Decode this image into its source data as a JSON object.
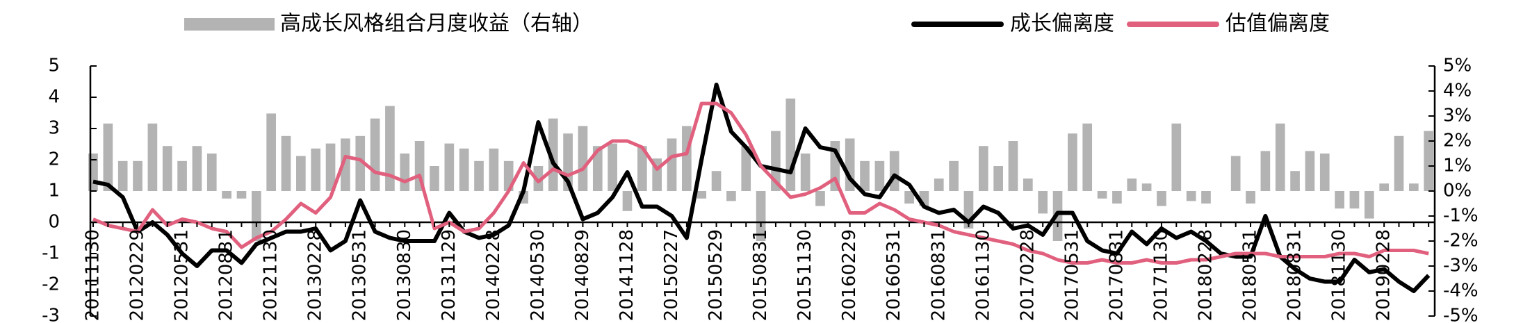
{
  "chart_data": {
    "type": "combo",
    "categories": [
      "20111130",
      null,
      null,
      "20120229",
      null,
      null,
      "20120531",
      null,
      null,
      "20120831",
      null,
      null,
      "20121130",
      null,
      null,
      "20130228",
      null,
      null,
      "20130531",
      null,
      null,
      "20130830",
      null,
      null,
      "20131129",
      null,
      null,
      "20140228",
      null,
      null,
      "20140530",
      null,
      null,
      "20140829",
      null,
      null,
      "20141128",
      null,
      null,
      "20150227",
      null,
      null,
      "20150529",
      null,
      null,
      "20150831",
      null,
      null,
      "20151130",
      null,
      null,
      "20160229",
      null,
      null,
      "20160531",
      null,
      null,
      "20160831",
      null,
      null,
      "20161130",
      null,
      null,
      "20170228",
      null,
      null,
      "20170531",
      null,
      null,
      "20170831",
      null,
      null,
      "20171130",
      null,
      null,
      "20180228",
      null,
      null,
      "20180531",
      null,
      null,
      "20180831",
      null,
      null,
      "20181130",
      null,
      null,
      "20190228",
      null,
      null,
      null
    ],
    "series": [
      {
        "name": "高成长风格组合月度收益（右轴）",
        "type": "bar",
        "axis": "y2",
        "color": "#b3b3b3",
        "values": [
          1.5,
          2.7,
          1.2,
          1.2,
          2.7,
          1.8,
          1.2,
          1.8,
          1.5,
          -0.3,
          -0.3,
          -2.0,
          3.1,
          2.2,
          1.4,
          1.7,
          1.9,
          2.1,
          2.2,
          2.9,
          3.4,
          1.5,
          2.0,
          1.0,
          1.9,
          1.7,
          1.2,
          1.7,
          1.2,
          -0.5,
          1.0,
          2.9,
          2.3,
          2.6,
          1.8,
          1.9,
          -0.8,
          1.8,
          1.3,
          2.1,
          2.6,
          -0.3,
          0.8,
          -0.4,
          1.8,
          -2.0,
          2.4,
          3.7,
          1.5,
          -0.6,
          2.0,
          2.1,
          1.2,
          1.2,
          1.6,
          -0.5,
          -0.6,
          0.5,
          1.2,
          -1.5,
          1.8,
          1.0,
          2.0,
          0.5,
          -0.9,
          -2.0,
          2.3,
          2.7,
          -0.3,
          -0.5,
          0.5,
          0.3,
          -0.6,
          2.7,
          -0.4,
          -0.5,
          0.0,
          1.4,
          -0.5,
          1.6,
          2.7,
          0.8,
          1.6,
          1.5,
          -0.7,
          -0.7,
          -1.1,
          0.3,
          2.2,
          0.3,
          2.4
        ]
      },
      {
        "name": "成长偏离度",
        "type": "line",
        "color": "#000000",
        "values": [
          1.3,
          1.2,
          0.8,
          -0.3,
          0,
          -0.4,
          -1.0,
          -1.4,
          -0.9,
          -0.9,
          -1.3,
          -0.7,
          -0.5,
          -0.3,
          -0.3,
          -0.2,
          -0.9,
          -0.6,
          0.7,
          -0.3,
          -0.5,
          -0.6,
          -0.6,
          -0.6,
          0.3,
          -0.3,
          -0.5,
          -0.4,
          -0.1,
          1.0,
          3.2,
          1.9,
          1.3,
          0.1,
          0.3,
          0.8,
          1.6,
          0.5,
          0.5,
          0.2,
          -0.5,
          2.0,
          4.4,
          2.9,
          2.4,
          1.8,
          1.7,
          1.6,
          3.0,
          2.4,
          2.3,
          1.4,
          0.9,
          0.8,
          1.5,
          1.2,
          0.5,
          0.3,
          0.4,
          0.0,
          0.5,
          0.3,
          -0.2,
          -0.1,
          -0.4,
          0.3,
          0.3,
          -0.6,
          -0.9,
          -1.0,
          -0.3,
          -0.7,
          -0.2,
          -0.5,
          -0.3,
          -0.6,
          -1.0,
          -1.1,
          -1.1,
          0.2,
          -1.1,
          -1.5,
          -1.8,
          -1.9,
          -1.9,
          -1.2,
          -1.6,
          -1.5,
          -1.9,
          -2.2,
          -1.7
        ]
      },
      {
        "name": "估值偏离度",
        "type": "line",
        "color": "#e0607e",
        "values": [
          0.1,
          -0.1,
          -0.2,
          -0.3,
          0.4,
          -0.1,
          0.1,
          0.0,
          -0.2,
          -0.3,
          -0.8,
          -0.5,
          -0.3,
          0.1,
          0.6,
          0.3,
          0.8,
          2.1,
          2.0,
          1.6,
          1.5,
          1.3,
          1.5,
          -0.2,
          0.0,
          -0.3,
          -0.2,
          0.3,
          1.0,
          1.9,
          1.3,
          1.7,
          1.5,
          1.7,
          2.3,
          2.6,
          2.6,
          2.4,
          1.7,
          2.1,
          2.2,
          3.8,
          3.8,
          3.5,
          2.8,
          1.8,
          1.3,
          0.8,
          0.9,
          1.1,
          1.4,
          0.3,
          0.3,
          0.6,
          0.4,
          0.1,
          0.0,
          -0.1,
          -0.3,
          -0.4,
          -0.5,
          -0.6,
          -0.7,
          -0.9,
          -1.0,
          -1.2,
          -1.3,
          -1.3,
          -1.2,
          -1.3,
          -1.3,
          -1.2,
          -1.3,
          -1.3,
          -1.2,
          -1.2,
          -1.1,
          -1.0,
          -1.0,
          -1.0,
          -1.1,
          -1.1,
          -1.1,
          -1.1,
          -1.0,
          -1.0,
          -1.1,
          -0.9,
          -0.9,
          -0.9,
          -1.0
        ]
      }
    ],
    "ylim": [
      -3,
      5
    ],
    "yticks": [
      -3,
      -2,
      -1,
      0,
      1,
      2,
      3,
      4,
      5
    ],
    "y2lim": [
      -5,
      5
    ],
    "y2ticks": [
      {
        "value": -5,
        "label": "-5%"
      },
      {
        "value": -4,
        "label": "-4%"
      },
      {
        "value": -3,
        "label": "-3%"
      },
      {
        "value": -2,
        "label": "-2%"
      },
      {
        "value": -1,
        "label": "-1%"
      },
      {
        "value": 0,
        "label": "0%"
      },
      {
        "value": 1,
        "label": "1%"
      },
      {
        "value": 2,
        "label": "2%"
      },
      {
        "value": 3,
        "label": "3%"
      },
      {
        "value": 4,
        "label": "4%"
      },
      {
        "value": 5,
        "label": "5%"
      }
    ],
    "legend": "top"
  }
}
